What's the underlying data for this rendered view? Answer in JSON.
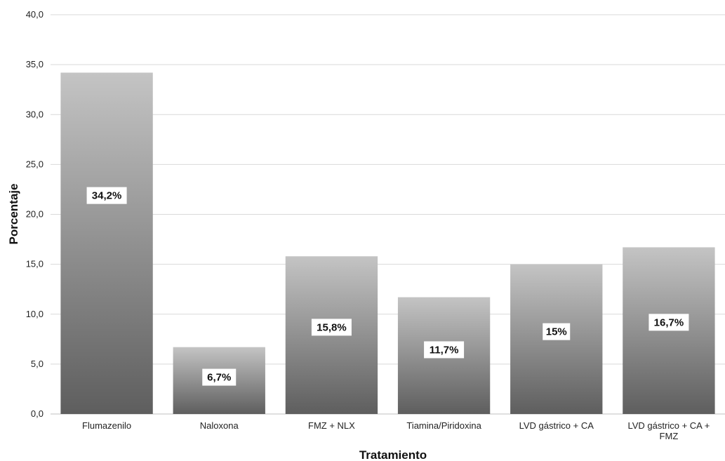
{
  "chart_data": {
    "type": "bar",
    "title": "",
    "xlabel": "Tratamiento",
    "ylabel": "Porcentaje",
    "ylim": [
      0,
      40
    ],
    "yticks": [
      "0,0",
      "5,0",
      "10,0",
      "15,0",
      "20,0",
      "25,0",
      "30,0",
      "35,0",
      "40,0"
    ],
    "grid": true,
    "legend": "none",
    "categories": [
      [
        "Flumazenilo"
      ],
      [
        "Naloxona"
      ],
      [
        "FMZ + NLX"
      ],
      [
        "Tiamina/Piridoxina"
      ],
      [
        "LVD gástrico + CA"
      ],
      [
        "LVD gástrico + CA +",
        "FMZ"
      ]
    ],
    "values": [
      34.2,
      6.7,
      15.8,
      11.7,
      15,
      16.7
    ],
    "data_labels": [
      "34,2%",
      "6,7%",
      "15,8%",
      "11,7%",
      "15%",
      "16,7%"
    ],
    "colors": {
      "bar_top": "#c4c4c4",
      "bar_bottom": "#5e5e5e",
      "grid": "#d9d9d9"
    }
  }
}
